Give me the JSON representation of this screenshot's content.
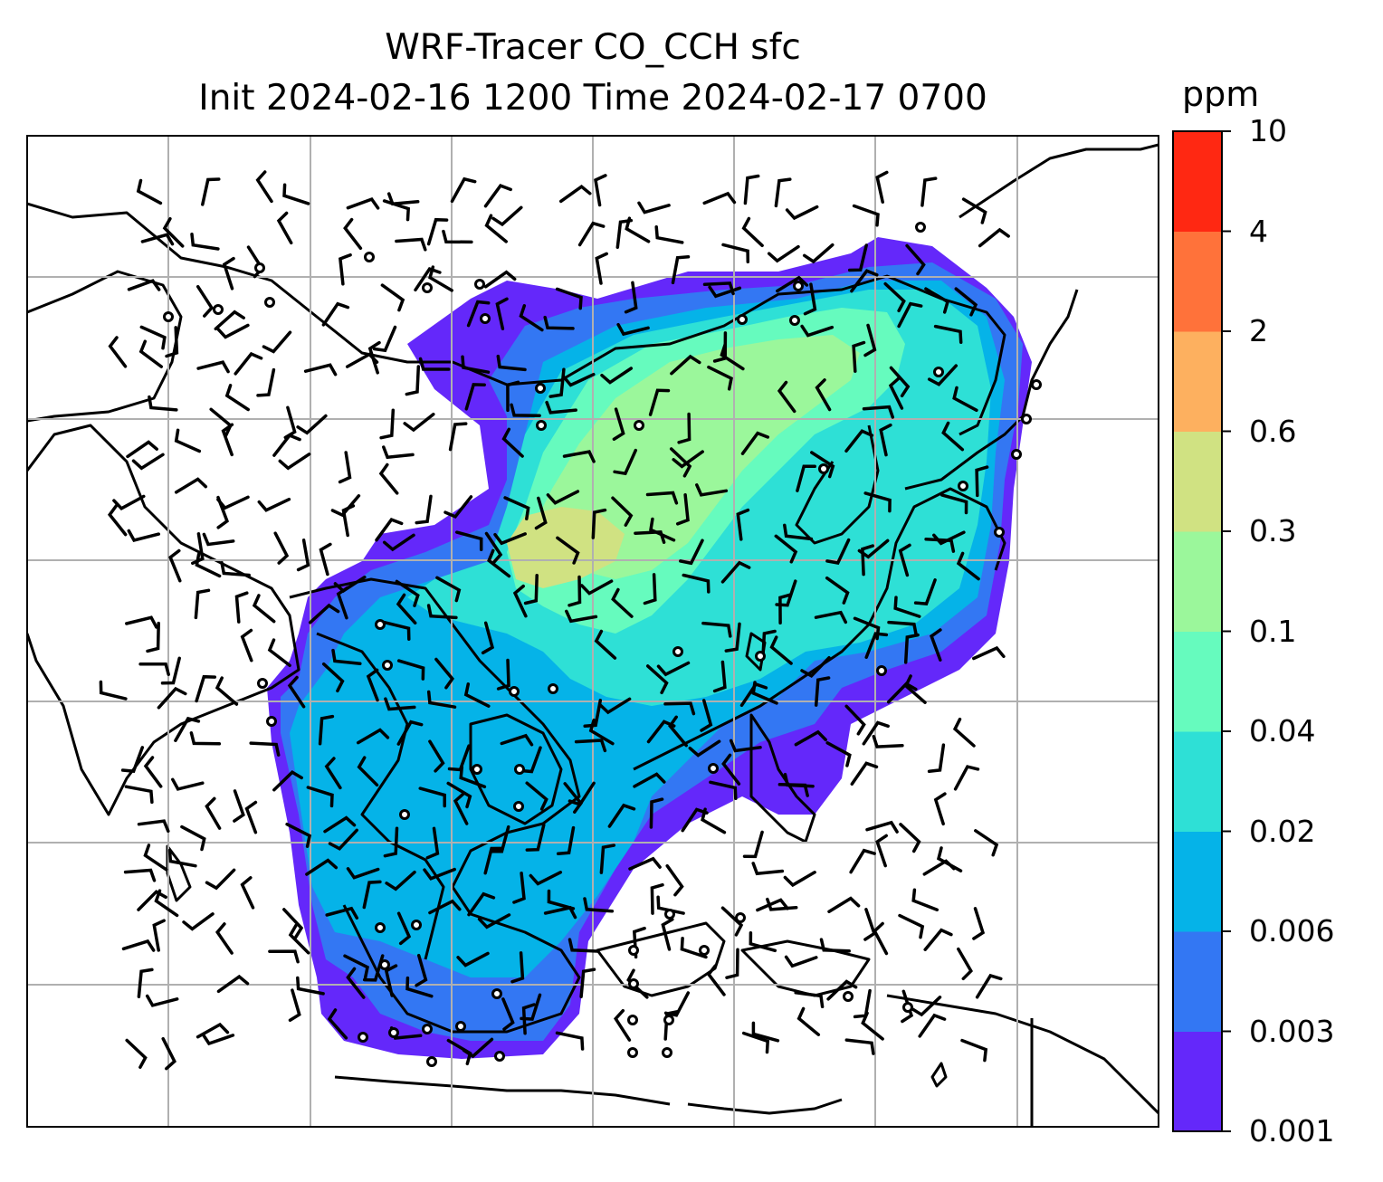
{
  "title": {
    "line1": "WRF-Tracer CO_CCH sfc",
    "line2": "Init 2024-02-16 1200 Time 2024-02-17 0700"
  },
  "colorbar": {
    "unit": "ppm",
    "levels": [
      "0.001",
      "0.003",
      "0.006",
      "0.02",
      "0.04",
      "0.1",
      "0.3",
      "0.6",
      "2",
      "4",
      "10"
    ],
    "colors": [
      "#6428fa",
      "#3377f3",
      "#05b3e8",
      "#2ee0d6",
      "#66fbbe",
      "#9bf79b",
      "#d0e282",
      "#fdb05f",
      "#ff723a",
      "#ff2812"
    ]
  },
  "map": {
    "gridlines": true,
    "overlays": [
      "coastlines",
      "country-borders",
      "wind-barbs",
      "calm-circles"
    ]
  }
}
